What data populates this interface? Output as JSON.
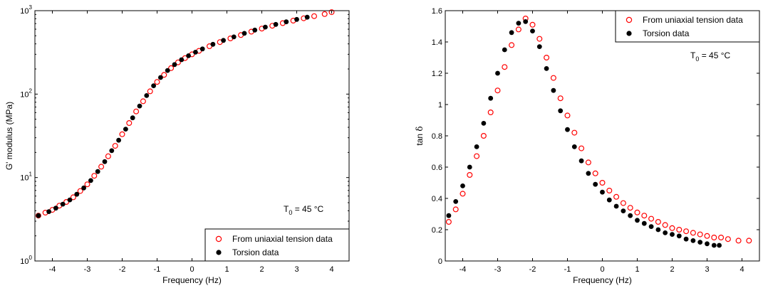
{
  "chart_data": [
    {
      "type": "scatter",
      "title": "",
      "xlabel": "Frequency (Hz)",
      "ylabel": "G' modulus (MPa)",
      "yscale": "log",
      "xlim": [
        -4.5,
        4.5
      ],
      "ylim": [
        1,
        1000
      ],
      "xticks": [
        -4,
        -3,
        -2,
        -1,
        0,
        1,
        2,
        3,
        4
      ],
      "xtick_labels": [
        "-4",
        "-3",
        "-2",
        "-1",
        "0",
        "1",
        "2",
        "3",
        "4"
      ],
      "yticks": [
        1,
        10,
        100,
        1000
      ],
      "ytick_labels": [
        {
          "base": "10",
          "exp": "0"
        },
        {
          "base": "10",
          "exp": "1"
        },
        {
          "base": "10",
          "exp": "2"
        },
        {
          "base": "10",
          "exp": "3"
        }
      ],
      "legend_position": "bottom-right",
      "annotation": {
        "main": "T",
        "sub": "0",
        "rest": " = 45 °C"
      },
      "series": [
        {
          "name": "From uniaxial tension data",
          "marker": "open-circle",
          "color": "#ff0000",
          "x": [
            -4.4,
            -4.2,
            -4.0,
            -3.8,
            -3.6,
            -3.4,
            -3.2,
            -3.0,
            -2.8,
            -2.6,
            -2.4,
            -2.2,
            -2.0,
            -1.8,
            -1.6,
            -1.4,
            -1.2,
            -1.0,
            -0.8,
            -0.6,
            -0.4,
            -0.2,
            0.0,
            0.2,
            0.5,
            0.8,
            1.1,
            1.4,
            1.7,
            2.0,
            2.3,
            2.6,
            2.9,
            3.2,
            3.5,
            3.8,
            4.0
          ],
          "y": [
            3.5,
            3.8,
            4.1,
            4.6,
            5.1,
            5.8,
            6.9,
            8.3,
            10.5,
            13.5,
            18,
            24,
            33,
            45,
            62,
            82,
            108,
            140,
            170,
            205,
            240,
            270,
            300,
            330,
            375,
            420,
            465,
            510,
            560,
            610,
            660,
            710,
            760,
            810,
            860,
            910,
            960
          ]
        },
        {
          "name": "Torsion data",
          "marker": "filled-circle",
          "color": "#000000",
          "x": [
            -4.4,
            -4.1,
            -3.9,
            -3.7,
            -3.5,
            -3.3,
            -3.1,
            -2.9,
            -2.7,
            -2.5,
            -2.3,
            -2.1,
            -1.9,
            -1.7,
            -1.5,
            -1.3,
            -1.1,
            -0.9,
            -0.7,
            -0.5,
            -0.3,
            -0.1,
            0.1,
            0.3,
            0.6,
            0.9,
            1.2,
            1.5,
            1.8,
            2.1,
            2.4,
            2.7,
            3.0,
            3.3
          ],
          "y": [
            3.5,
            3.9,
            4.3,
            4.8,
            5.4,
            6.3,
            7.5,
            9.2,
            11.8,
            15.5,
            21,
            28,
            38,
            52,
            72,
            96,
            126,
            158,
            192,
            226,
            258,
            288,
            318,
            348,
            395,
            440,
            485,
            535,
            585,
            635,
            685,
            735,
            785,
            835
          ]
        }
      ]
    },
    {
      "type": "scatter",
      "title": "",
      "xlabel": "Frequency (Hz)",
      "ylabel_parts": {
        "pre": "tan ",
        "greek": "δ"
      },
      "yscale": "linear",
      "xlim": [
        -4.5,
        4.5
      ],
      "ylim": [
        0,
        1.6
      ],
      "xticks": [
        -4,
        -3,
        -2,
        -1,
        0,
        1,
        2,
        3,
        4
      ],
      "xtick_labels": [
        "-4",
        "-3",
        "-2",
        "-1",
        "0",
        "1",
        "2",
        "3",
        "4"
      ],
      "yticks": [
        0,
        0.2,
        0.4,
        0.6,
        0.8,
        1.0,
        1.2,
        1.4,
        1.6
      ],
      "ytick_labels": [
        "0",
        "0.2",
        "0.4",
        "0.6",
        "0.8",
        "1",
        "1.2",
        "1.4",
        "1.6"
      ],
      "legend_position": "top-right",
      "annotation": {
        "main": "T",
        "sub": "0",
        "rest": " = 45 °C"
      },
      "series": [
        {
          "name": "From uniaxial tension data",
          "marker": "open-circle",
          "color": "#ff0000",
          "x": [
            -4.4,
            -4.2,
            -4.0,
            -3.8,
            -3.6,
            -3.4,
            -3.2,
            -3.0,
            -2.8,
            -2.6,
            -2.4,
            -2.2,
            -2.0,
            -1.8,
            -1.6,
            -1.4,
            -1.2,
            -1.0,
            -0.8,
            -0.6,
            -0.4,
            -0.2,
            0.0,
            0.2,
            0.4,
            0.6,
            0.8,
            1.0,
            1.2,
            1.4,
            1.6,
            1.8,
            2.0,
            2.2,
            2.4,
            2.6,
            2.8,
            3.0,
            3.2,
            3.4,
            3.6,
            3.9,
            4.2
          ],
          "y": [
            0.25,
            0.33,
            0.43,
            0.55,
            0.67,
            0.8,
            0.95,
            1.09,
            1.24,
            1.38,
            1.48,
            1.55,
            1.51,
            1.42,
            1.3,
            1.17,
            1.04,
            0.93,
            0.82,
            0.72,
            0.63,
            0.56,
            0.5,
            0.45,
            0.41,
            0.37,
            0.34,
            0.31,
            0.29,
            0.27,
            0.25,
            0.23,
            0.21,
            0.2,
            0.19,
            0.18,
            0.17,
            0.16,
            0.15,
            0.15,
            0.14,
            0.13,
            0.13
          ]
        },
        {
          "name": "Torsion data",
          "marker": "filled-circle",
          "color": "#000000",
          "x": [
            -4.4,
            -4.2,
            -4.0,
            -3.8,
            -3.6,
            -3.4,
            -3.2,
            -3.0,
            -2.8,
            -2.6,
            -2.4,
            -2.2,
            -2.0,
            -1.8,
            -1.6,
            -1.4,
            -1.2,
            -1.0,
            -0.8,
            -0.6,
            -0.4,
            -0.2,
            0.0,
            0.2,
            0.4,
            0.6,
            0.8,
            1.0,
            1.2,
            1.4,
            1.6,
            1.8,
            2.0,
            2.2,
            2.4,
            2.6,
            2.8,
            3.0,
            3.2,
            3.35
          ],
          "y": [
            0.29,
            0.38,
            0.48,
            0.6,
            0.73,
            0.88,
            1.04,
            1.2,
            1.35,
            1.46,
            1.52,
            1.53,
            1.47,
            1.37,
            1.23,
            1.09,
            0.96,
            0.84,
            0.73,
            0.64,
            0.56,
            0.49,
            0.44,
            0.39,
            0.35,
            0.32,
            0.29,
            0.26,
            0.24,
            0.22,
            0.2,
            0.18,
            0.17,
            0.16,
            0.14,
            0.13,
            0.12,
            0.11,
            0.1,
            0.1
          ]
        }
      ]
    }
  ]
}
